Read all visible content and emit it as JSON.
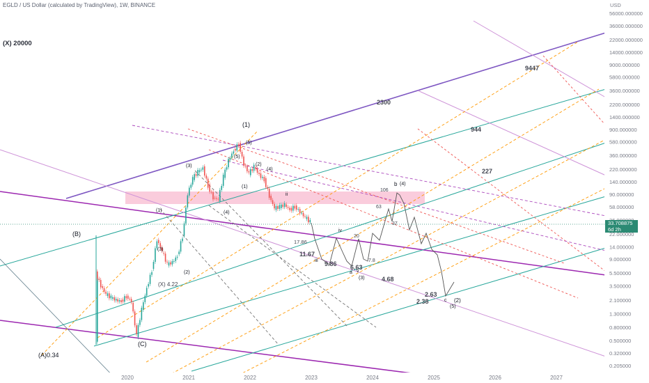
{
  "header": {
    "title": "EGLD / US Dollar (calculated by TradingView), 1W, BINANCE"
  },
  "price_tag": {
    "price": "33.708875",
    "countdown": "6d 2h"
  },
  "chart_data": {
    "type": "line",
    "symbol": "EGLD / US Dollar (calculated by TradingView)",
    "interval": "1W",
    "exchange": "BINANCE",
    "scale": "log",
    "y_unit": "USD",
    "y_ticks": [
      0.205,
      0.32,
      0.5,
      0.8,
      1.3,
      2.1,
      3.5,
      5.5,
      9,
      14,
      22,
      36,
      58,
      90,
      140,
      220,
      360,
      580,
      900,
      1400,
      2200,
      3600,
      5800,
      9000,
      14000,
      22000,
      36000,
      56000
    ],
    "y_tick_labels": [
      "0.205000",
      "0.320000",
      "0.500000",
      "0.800000",
      "1.300000",
      "2.100000",
      "3.500000",
      "5.500000",
      "9.000000",
      "14.000000",
      "22.000000",
      "36.000000",
      "58.000000",
      "90.000000",
      "140.000000",
      "220.000000",
      "360.000000",
      "580.000000",
      "900.000000",
      "1400.000000",
      "2200.000000",
      "3600.000000",
      "5800.000000",
      "9000.000000",
      "14000.000000",
      "22000.000000",
      "36000.000000",
      "56000.000000"
    ],
    "x_tick_labels": [
      "2020",
      "2021",
      "2022",
      "2023",
      "2024",
      "2025",
      "2026",
      "2027"
    ],
    "price_series": [
      {
        "date": "2019-07",
        "price": 0.45
      },
      {
        "date": "2019-07",
        "price": 5.5
      },
      {
        "date": "2019-08",
        "price": 3.5
      },
      {
        "date": "2019-09",
        "price": 2.6
      },
      {
        "date": "2019-10",
        "price": 2.3
      },
      {
        "date": "2019-11",
        "price": 2.1
      },
      {
        "date": "2019-12",
        "price": 2.0
      },
      {
        "date": "2020-01",
        "price": 2.4
      },
      {
        "date": "2020-02",
        "price": 2.0
      },
      {
        "date": "2020-03",
        "price": 0.6
      },
      {
        "date": "2020-04",
        "price": 1.5
      },
      {
        "date": "2020-05",
        "price": 3.2
      },
      {
        "date": "2020-06",
        "price": 6.0
      },
      {
        "date": "2020-07",
        "price": 18
      },
      {
        "date": "2020-08",
        "price": 12
      },
      {
        "date": "2020-09",
        "price": 7.5
      },
      {
        "date": "2020-10",
        "price": 8
      },
      {
        "date": "2020-11",
        "price": 10
      },
      {
        "date": "2020-12",
        "price": 20
      },
      {
        "date": "2021-01",
        "price": 90
      },
      {
        "date": "2021-02",
        "price": 160
      },
      {
        "date": "2021-03",
        "price": 200
      },
      {
        "date": "2021-04",
        "price": 230
      },
      {
        "date": "2021-05",
        "price": 120
      },
      {
        "date": "2021-06",
        "price": 80
      },
      {
        "date": "2021-07",
        "price": 75
      },
      {
        "date": "2021-08",
        "price": 170
      },
      {
        "date": "2021-09",
        "price": 300
      },
      {
        "date": "2021-10",
        "price": 420
      },
      {
        "date": "2021-11",
        "price": 540
      },
      {
        "date": "2021-12",
        "price": 260
      },
      {
        "date": "2022-01",
        "price": 190
      },
      {
        "date": "2022-02",
        "price": 240
      },
      {
        "date": "2022-03",
        "price": 180
      },
      {
        "date": "2022-04",
        "price": 150
      },
      {
        "date": "2022-05",
        "price": 85
      },
      {
        "date": "2022-06",
        "price": 55
      },
      {
        "date": "2022-07",
        "price": 58
      },
      {
        "date": "2022-08",
        "price": 62
      },
      {
        "date": "2022-09",
        "price": 52
      },
      {
        "date": "2022-10",
        "price": 58
      },
      {
        "date": "2022-11",
        "price": 48
      },
      {
        "date": "2022-12",
        "price": 40
      },
      {
        "date": "2023-01",
        "price": 33.708875
      }
    ],
    "price_levels": [
      "(X) 20000",
      "9447",
      "2300",
      "944",
      "227",
      "106",
      "63",
      "37",
      "20",
      "17.86",
      "11.67",
      "9.86",
      "7.8",
      "6.63",
      "4.68",
      "2.63",
      "2.38",
      "(X) 4.22",
      "(A)0.34"
    ],
    "wave_labels": [
      "(1)",
      "(2)",
      "(3)",
      "(4)",
      "(5)",
      "(1)",
      "(2)",
      "(3)",
      "(4)",
      "(5)",
      "(A)",
      "(B)",
      "(C)",
      "ii",
      "iii",
      "iv",
      "v",
      "a",
      "b",
      "c",
      "(3)",
      "(4)",
      "(5)",
      "(2)"
    ],
    "grid": false,
    "legend": "none"
  },
  "labels": {
    "x20000": "(X) 20000",
    "l9447": "9447",
    "l2300": "2300",
    "l944": "944",
    "l227": "227",
    "l106": "106",
    "l63": "63",
    "l37": "37",
    "l20": "20",
    "l1786": "17.86",
    "l1167": "11.67",
    "l986": "9.86",
    "l78": "7.8",
    "l663": "6.63",
    "l468": "4.68",
    "l263": "2.63",
    "l238": "2.38",
    "x422": "(X) 4.22",
    "a034": "(A)0.34",
    "w1": "(1)",
    "w2": "(2)",
    "w3": "(3)",
    "w4": "(4)",
    "w5": "(5)",
    "s1": "(1)",
    "s2": "(2)",
    "s3": "(3)",
    "s4": "(4)",
    "s5": "(5)",
    "A": "(A)",
    "B": "(B)",
    "C": "(C)",
    "ii": "ii",
    "iii": "iii",
    "iv": "iv",
    "v": "v",
    "a": "a",
    "b": "b",
    "c": "c",
    "f3": "(3)",
    "f4": "(4)",
    "f5": "(5)",
    "f2": "(2)",
    "s1small": "(1)",
    "usd": "USD"
  },
  "colors": {
    "candle_up": "#26a69a",
    "candle_down": "#ef5350",
    "channel_purple": "#9c27b0",
    "channel_teal": "#26a69a",
    "fib_orange": "#ff9800",
    "dashed_red": "#e57373",
    "dashed_magenta": "#ba68c8",
    "zone_pink": "#f8bbd0",
    "price_tag": "#2b8a73"
  }
}
